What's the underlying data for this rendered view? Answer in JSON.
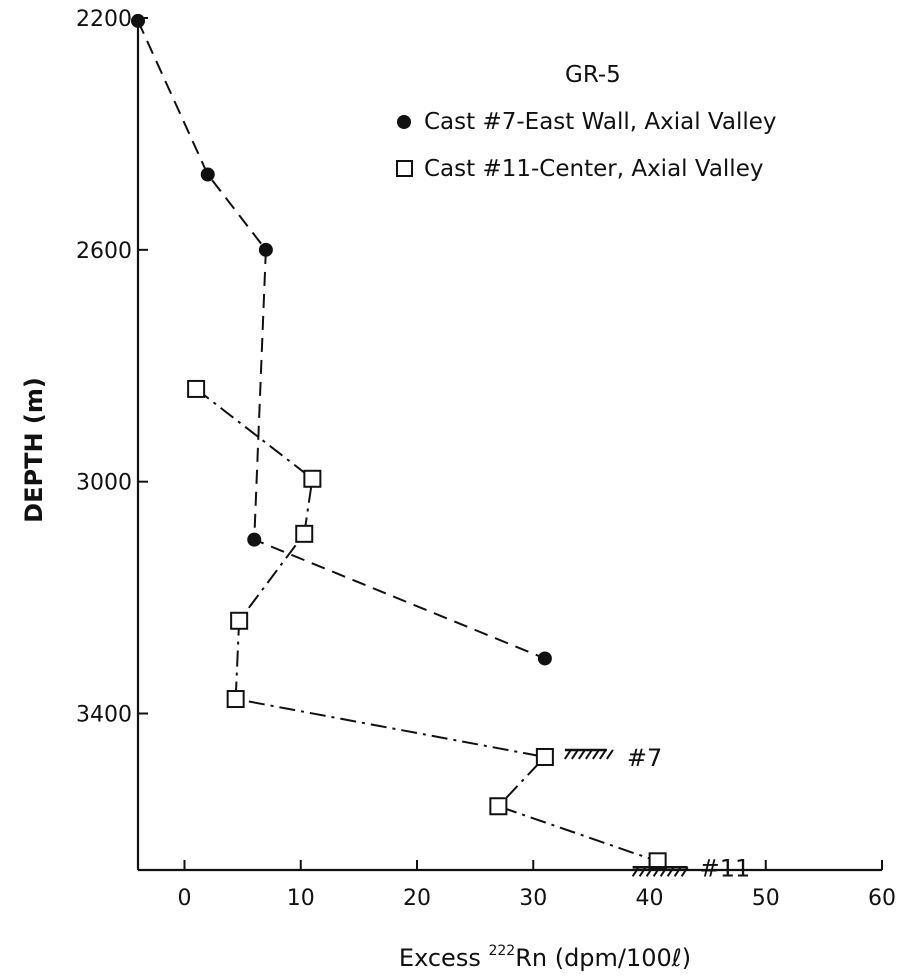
{
  "chart_data": {
    "type": "line",
    "title": "GR-5",
    "xlabel_prefix": "Excess ",
    "xlabel_sup": "222",
    "xlabel_suffix": "Rn (dpm/100ℓ)",
    "ylabel": "DEPTH (m)",
    "xlim": [
      -4,
      60
    ],
    "ylim": [
      2200,
      3670
    ],
    "y_inverted": true,
    "xticks": [
      0,
      10,
      20,
      30,
      40,
      50,
      60
    ],
    "yticks": [
      2200,
      2600,
      3000,
      3400
    ],
    "grid": false,
    "legend_position": "top-right",
    "series": [
      {
        "name": "Cast #7-East Wall, Axial Valley",
        "marker": "filled-circle",
        "line": "dashed",
        "points": [
          {
            "x": -4,
            "y": 2205
          },
          {
            "x": 2,
            "y": 2470
          },
          {
            "x": 7,
            "y": 2600
          },
          {
            "x": 6,
            "y": 3100
          },
          {
            "x": 31,
            "y": 3305
          }
        ]
      },
      {
        "name": "Cast #11-Center, Axial Valley",
        "marker": "open-square",
        "line": "dash-dot",
        "points": [
          {
            "x": 1,
            "y": 2840
          },
          {
            "x": 11,
            "y": 2995
          },
          {
            "x": 10.3,
            "y": 3090
          },
          {
            "x": 4.7,
            "y": 3240
          },
          {
            "x": 4.4,
            "y": 3375
          },
          {
            "x": 31,
            "y": 3475
          },
          {
            "x": 27,
            "y": 3560
          },
          {
            "x": 40.7,
            "y": 3655
          }
        ]
      }
    ],
    "annotations": [
      {
        "text": "#7",
        "bottom_marker_for": "Cast #7",
        "x": 31,
        "y": 3475
      },
      {
        "text": "#11",
        "bottom_marker_for": "Cast #11",
        "x": 40.7,
        "y": 3655
      }
    ]
  }
}
